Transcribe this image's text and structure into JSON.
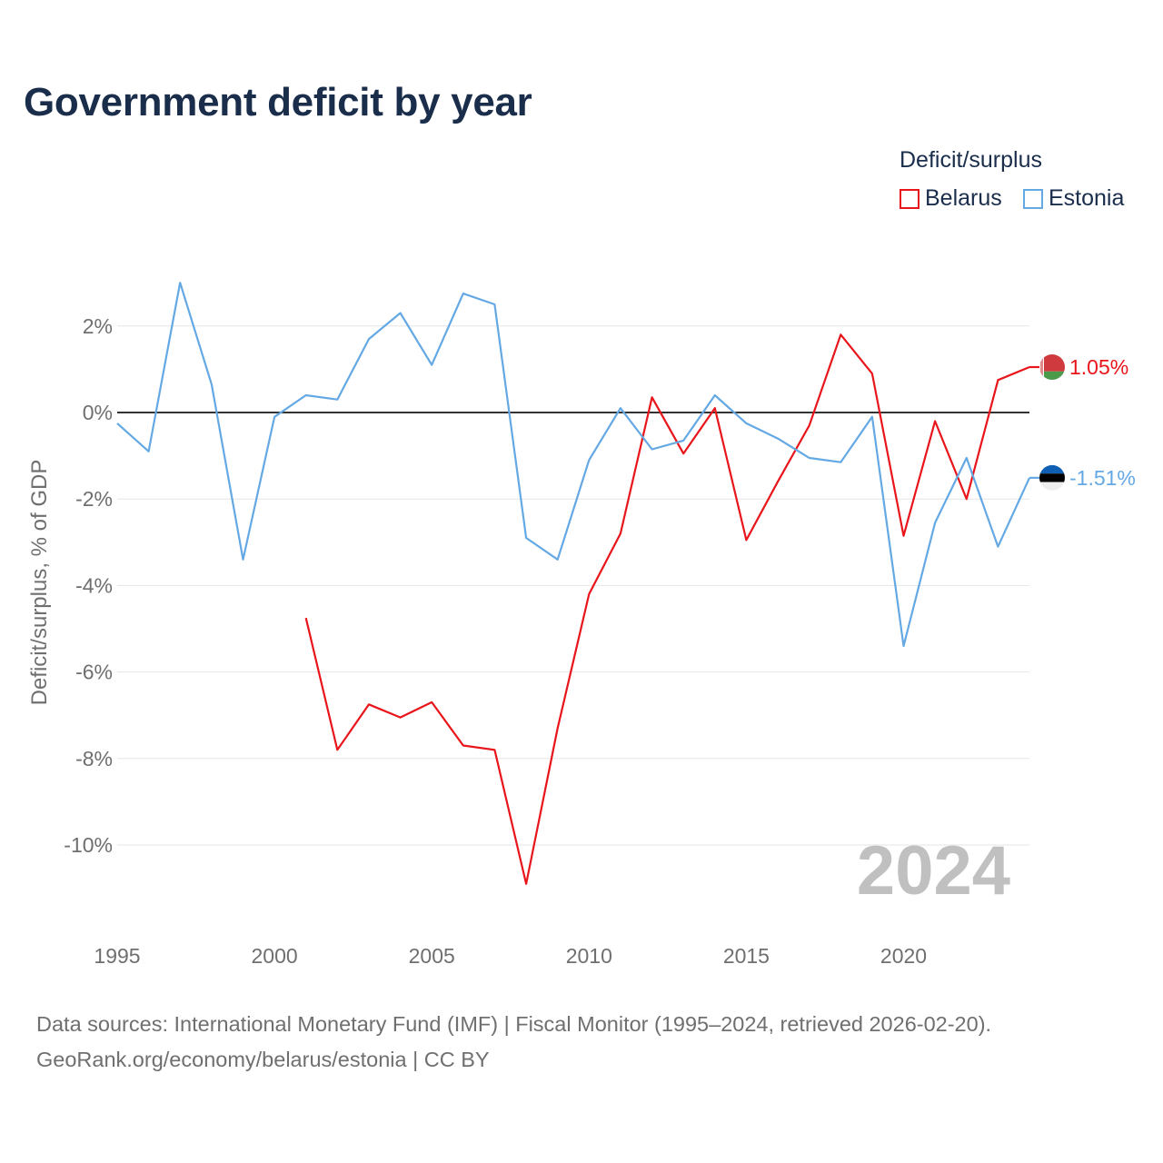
{
  "chart_data": {
    "type": "line",
    "title": "Government deficit by year",
    "ylabel": "Deficit/surplus, % of GDP",
    "xlabel": "",
    "legend_title": "Deficit/surplus",
    "legend_position": "top-right",
    "x_ticks": [
      1995,
      2000,
      2005,
      2010,
      2015,
      2020
    ],
    "y_ticks": [
      2,
      0,
      -2,
      -4,
      -6,
      -8,
      -10
    ],
    "y_tick_labels": [
      "2%",
      "0%",
      "-2%",
      "-4%",
      "-6%",
      "-8%",
      "-10%"
    ],
    "xlim": [
      1995,
      2024
    ],
    "ylim": [
      -12,
      4
    ],
    "highlight_year": "2024",
    "series": [
      {
        "name": "Belarus",
        "color": "#e8151b",
        "end_label": "1.05%",
        "flag": "belarus-flag",
        "x": [
          2001,
          2002,
          2003,
          2004,
          2005,
          2006,
          2007,
          2008,
          2009,
          2010,
          2011,
          2012,
          2013,
          2014,
          2015,
          2016,
          2017,
          2018,
          2019,
          2020,
          2021,
          2022,
          2023,
          2024
        ],
        "values": [
          -4.75,
          -7.8,
          -6.75,
          -7.05,
          -6.7,
          -7.7,
          -7.8,
          -10.9,
          -7.3,
          -4.2,
          -2.8,
          0.35,
          -0.95,
          0.1,
          -2.95,
          -1.6,
          -0.3,
          1.8,
          0.9,
          -2.85,
          -0.2,
          -2.0,
          0.75,
          1.05
        ]
      },
      {
        "name": "Estonia",
        "color": "#64a8e4",
        "end_label": "-1.51%",
        "flag": "estonia-flag",
        "x": [
          1995,
          1996,
          1997,
          1998,
          1999,
          2000,
          2001,
          2002,
          2003,
          2004,
          2005,
          2006,
          2007,
          2008,
          2009,
          2010,
          2011,
          2012,
          2013,
          2014,
          2015,
          2016,
          2017,
          2018,
          2019,
          2020,
          2021,
          2022,
          2023,
          2024
        ],
        "values": [
          -0.25,
          -0.9,
          3.0,
          0.65,
          -3.4,
          -0.1,
          0.4,
          0.3,
          1.7,
          2.3,
          1.1,
          2.75,
          2.5,
          -2.9,
          -3.4,
          -1.1,
          0.1,
          -0.85,
          -0.65,
          0.4,
          -0.25,
          -0.6,
          -1.05,
          -1.15,
          -0.1,
          -5.4,
          -2.55,
          -1.05,
          -3.1,
          -1.51
        ]
      }
    ]
  },
  "source": {
    "line1": "Data sources: International Monetary Fund (IMF) | Fiscal Monitor (1995–2024, retrieved 2026-02-20).",
    "line2": "GeoRank.org/economy/belarus/estonia | CC BY"
  }
}
